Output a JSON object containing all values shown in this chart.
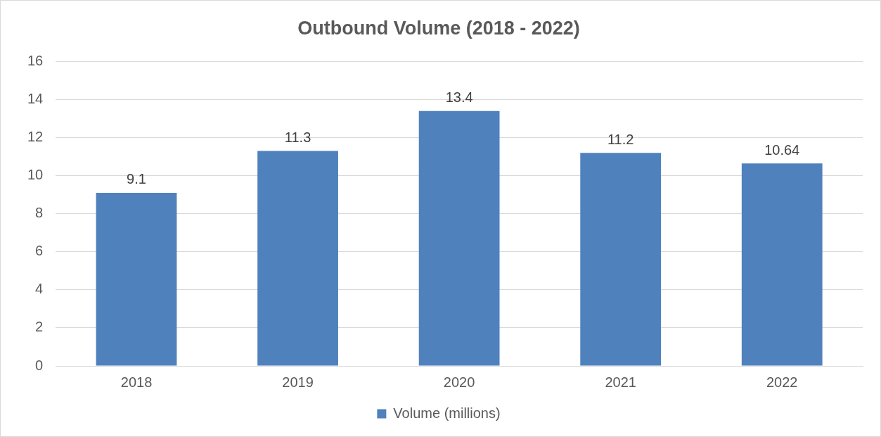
{
  "chart_data": {
    "type": "bar",
    "title": "Outbound Volume (2018 - 2022)",
    "categories": [
      "2018",
      "2019",
      "2020",
      "2021",
      "2022"
    ],
    "series": [
      {
        "name": "Volume (millions)",
        "color": "#4f81bd",
        "values": [
          9.1,
          11.3,
          13.4,
          11.2,
          10.64
        ]
      }
    ],
    "ylim": [
      0,
      16
    ],
    "yticks": [
      0,
      2,
      4,
      6,
      8,
      10,
      12,
      14,
      16
    ],
    "grid": "y",
    "legend": "bottom",
    "data_labels": true
  }
}
